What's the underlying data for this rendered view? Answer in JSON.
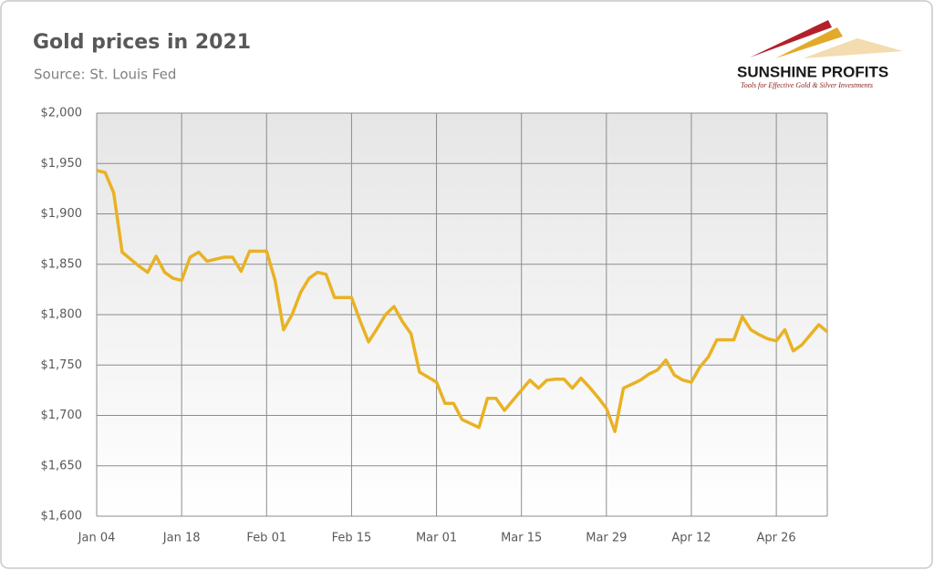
{
  "chart_data": {
    "type": "line",
    "title": "Gold prices in 2021",
    "subtitle": "Source: St. Louis Fed",
    "logo_name": "SUNSHINE PROFITS",
    "logo_tagline": "Tools for Effective Gold & Silver Investments",
    "categories": [
      "Jan 04",
      null,
      null,
      null,
      null,
      null,
      null,
      null,
      null,
      null,
      "Jan 18",
      null,
      null,
      null,
      null,
      null,
      null,
      null,
      null,
      null,
      "Feb 01",
      null,
      null,
      null,
      null,
      null,
      null,
      null,
      null,
      null,
      "Feb 15",
      null,
      null,
      null,
      null,
      null,
      null,
      null,
      null,
      null,
      "Mar 01",
      null,
      null,
      null,
      null,
      null,
      null,
      null,
      null,
      null,
      "Mar 15",
      null,
      null,
      null,
      null,
      null,
      null,
      null,
      null,
      null,
      "Mar 29",
      null,
      null,
      null,
      null,
      null,
      null,
      null,
      null,
      null,
      "Apr 12",
      null,
      null,
      null,
      null,
      null,
      null,
      null,
      null,
      null,
      "Apr 26",
      null,
      null,
      null,
      null,
      null,
      null
    ],
    "values": [
      1943,
      1941,
      1921,
      1862,
      1855,
      1848,
      1842,
      1858,
      1842,
      1836,
      1834,
      1857,
      1862,
      1853,
      1855,
      1857,
      1857,
      1843,
      1863,
      1863,
      1863,
      1834,
      1785,
      1800,
      1822,
      1836,
      1842,
      1840,
      1817,
      1817,
      1817,
      1794,
      1773,
      1786,
      1800,
      1808,
      1793,
      1781,
      1743,
      1738,
      1733,
      1712,
      1712,
      1696,
      1692,
      1688,
      1717,
      1717,
      1705,
      1715,
      1725,
      1735,
      1727,
      1735,
      1736,
      1736,
      1727,
      1737,
      1728,
      1718,
      1707,
      1684,
      1727,
      1731,
      1735,
      1741,
      1745,
      1755,
      1740,
      1735,
      1733,
      1748,
      1758,
      1775,
      1775,
      1775,
      1798,
      1785,
      1780,
      1776,
      1774,
      1785,
      1764,
      1770,
      1780,
      1790,
      1783
    ],
    "color": "#e9b224",
    "ylim": [
      1600,
      2000
    ],
    "yticks": [
      {
        "value": 1600,
        "label": "$1,600"
      },
      {
        "value": 1650,
        "label": "$1,650"
      },
      {
        "value": 1700,
        "label": "$1,700"
      },
      {
        "value": 1750,
        "label": "$1,750"
      },
      {
        "value": 1800,
        "label": "$1,800"
      },
      {
        "value": 1850,
        "label": "$1,850"
      },
      {
        "value": 1900,
        "label": "$1,900"
      },
      {
        "value": 1950,
        "label": "$1,950"
      },
      {
        "value": 2000,
        "label": "$2,000"
      }
    ],
    "grid": true
  }
}
